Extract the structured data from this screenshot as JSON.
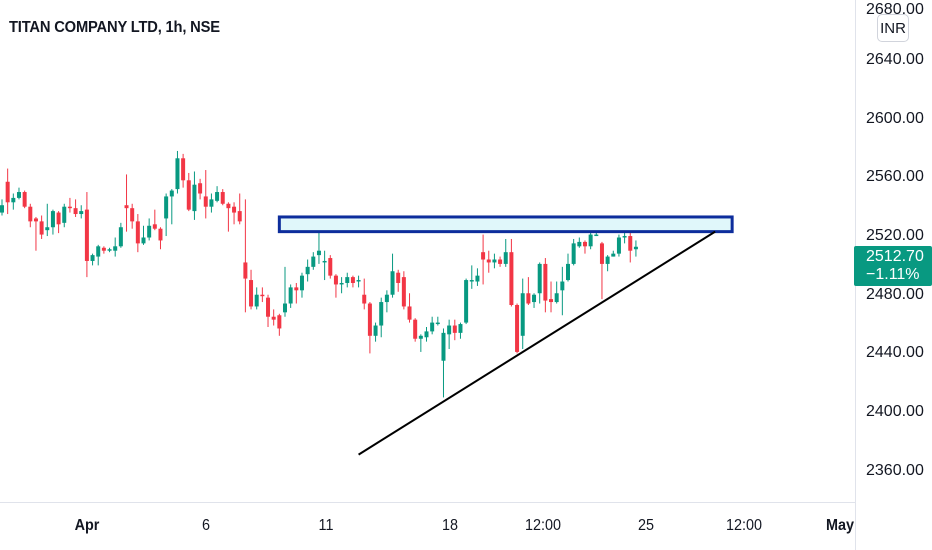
{
  "header": {
    "title": "TITAN COMPANY LTD, 1h, NSE",
    "currency": "INR"
  },
  "last_price": {
    "value": "2512.70",
    "change": "−1.11%",
    "color": "#089981"
  },
  "chart_data": {
    "type": "candlestick",
    "title": "TITAN COMPANY LTD, 1h, NSE",
    "ylim": [
      2340,
      2680
    ],
    "y_ticks": [
      "2360.00",
      "2400.00",
      "2440.00",
      "2480.00",
      "2520.00",
      "2560.00",
      "2600.00",
      "2640.00",
      "2680.00"
    ],
    "x_ticks": [
      {
        "label": "Apr",
        "bold": true
      },
      {
        "label": "6"
      },
      {
        "label": "11"
      },
      {
        "label": "18"
      },
      {
        "label": "12:00"
      },
      {
        "label": "25"
      },
      {
        "label": "12:00"
      },
      {
        "label": "May",
        "bold": true
      }
    ],
    "colors": {
      "up": "#089981",
      "down": "#f23645",
      "zone_fill": "#e0f7fa",
      "zone_border": "#0d2d9c",
      "trendline": "#000000"
    },
    "candles_ohlc": [
      [
        2536,
        2545,
        2534,
        2541
      ],
      [
        2557,
        2566,
        2535,
        2543
      ],
      [
        2543,
        2549,
        2538,
        2546
      ],
      [
        2546,
        2553,
        2545,
        2550
      ],
      [
        2550,
        2551,
        2539,
        2540
      ],
      [
        2540,
        2542,
        2526,
        2530
      ],
      [
        2532,
        2533,
        2510,
        2530
      ],
      [
        2530,
        2534,
        2518,
        2521
      ],
      [
        2524,
        2542,
        2520,
        2526
      ],
      [
        2526,
        2538,
        2521,
        2537
      ],
      [
        2536,
        2537,
        2522,
        2528
      ],
      [
        2529,
        2542,
        2526,
        2540
      ],
      [
        2540,
        2546,
        2536,
        2539
      ],
      [
        2539,
        2545,
        2533,
        2535
      ],
      [
        2535,
        2541,
        2532,
        2537
      ],
      [
        2538,
        2550,
        2492,
        2503
      ],
      [
        2503,
        2508,
        2500,
        2507
      ],
      [
        2506,
        2514,
        2500,
        2513
      ],
      [
        2512,
        2513,
        2508,
        2510
      ],
      [
        2510,
        2512,
        2509,
        2511
      ],
      [
        2510,
        2519,
        2506,
        2513
      ],
      [
        2513,
        2529,
        2512,
        2526
      ],
      [
        2541,
        2562,
        2523,
        2539
      ],
      [
        2539,
        2542,
        2525,
        2530
      ],
      [
        2530,
        2535,
        2509,
        2515
      ],
      [
        2515,
        2527,
        2514,
        2519
      ],
      [
        2519,
        2532,
        2517,
        2527
      ],
      [
        2528,
        2538,
        2524,
        2525
      ],
      [
        2525,
        2526,
        2511,
        2517
      ],
      [
        2532,
        2549,
        2520,
        2547
      ],
      [
        2547,
        2552,
        2528,
        2551
      ],
      [
        2552,
        2578,
        2549,
        2573
      ],
      [
        2573,
        2576,
        2553,
        2558
      ],
      [
        2558,
        2563,
        2537,
        2538
      ],
      [
        2537,
        2564,
        2531,
        2555
      ],
      [
        2556,
        2559,
        2545,
        2549
      ],
      [
        2547,
        2565,
        2532,
        2540
      ],
      [
        2540,
        2549,
        2536,
        2545
      ],
      [
        2544,
        2554,
        2543,
        2550
      ],
      [
        2550,
        2552,
        2541,
        2542
      ],
      [
        2542,
        2543,
        2523,
        2539
      ],
      [
        2540,
        2543,
        2528,
        2536
      ],
      [
        2537,
        2549,
        2528,
        2530
      ],
      [
        2502,
        2545,
        2468,
        2491
      ],
      [
        2490,
        2497,
        2470,
        2472
      ],
      [
        2472,
        2485,
        2470,
        2480
      ],
      [
        2480,
        2485,
        2475,
        2479
      ],
      [
        2478,
        2480,
        2458,
        2465
      ],
      [
        2465,
        2470,
        2459,
        2463
      ],
      [
        2466,
        2467,
        2452,
        2457
      ],
      [
        2468,
        2499,
        2465,
        2474
      ],
      [
        2474,
        2487,
        2471,
        2485
      ],
      [
        2485,
        2488,
        2474,
        2483
      ],
      [
        2483,
        2495,
        2478,
        2493
      ],
      [
        2494,
        2504,
        2489,
        2499
      ],
      [
        2499,
        2509,
        2497,
        2506
      ],
      [
        2507,
        2533,
        2501,
        2510
      ],
      [
        2502,
        2510,
        2490,
        2503
      ],
      [
        2505,
        2507,
        2491,
        2493
      ],
      [
        2493,
        2494,
        2478,
        2487
      ],
      [
        2487,
        2492,
        2481,
        2488
      ],
      [
        2488,
        2495,
        2485,
        2492
      ],
      [
        2492,
        2493,
        2485,
        2488
      ],
      [
        2489,
        2493,
        2485,
        2490
      ],
      [
        2480,
        2491,
        2470,
        2474
      ],
      [
        2474,
        2475,
        2440,
        2452
      ],
      [
        2452,
        2461,
        2448,
        2459
      ],
      [
        2459,
        2478,
        2451,
        2475
      ],
      [
        2475,
        2483,
        2468,
        2480
      ],
      [
        2480,
        2508,
        2478,
        2496
      ],
      [
        2495,
        2497,
        2482,
        2488
      ],
      [
        2492,
        2496,
        2470,
        2472
      ],
      [
        2472,
        2481,
        2461,
        2463
      ],
      [
        2463,
        2464,
        2448,
        2450
      ],
      [
        2450,
        2453,
        2441,
        2452
      ],
      [
        2451,
        2458,
        2448,
        2455
      ],
      [
        2455,
        2465,
        2453,
        2461
      ],
      [
        2460,
        2465,
        2459,
        2461
      ],
      [
        2435,
        2457,
        2410,
        2454
      ],
      [
        2453,
        2463,
        2443,
        2459
      ],
      [
        2459,
        2463,
        2449,
        2454
      ],
      [
        2454,
        2461,
        2450,
        2460
      ],
      [
        2461,
        2491,
        2460,
        2490
      ],
      [
        2489,
        2500,
        2484,
        2490
      ],
      [
        2489,
        2498,
        2486,
        2493
      ],
      [
        2509,
        2521,
        2487,
        2504
      ],
      [
        2504,
        2510,
        2495,
        2502
      ],
      [
        2502,
        2508,
        2498,
        2504
      ],
      [
        2504,
        2506,
        2499,
        2501
      ],
      [
        2501,
        2518,
        2499,
        2509
      ],
      [
        2509,
        2518,
        2472,
        2473
      ],
      [
        2473,
        2474,
        2440,
        2441
      ],
      [
        2452,
        2491,
        2443,
        2481
      ],
      [
        2481,
        2492,
        2473,
        2474
      ],
      [
        2475,
        2481,
        2471,
        2480
      ],
      [
        2481,
        2502,
        2474,
        2501
      ],
      [
        2501,
        2505,
        2468,
        2476
      ],
      [
        2477,
        2489,
        2468,
        2475
      ],
      [
        2475,
        2489,
        2474,
        2481
      ],
      [
        2483,
        2499,
        2466,
        2489
      ],
      [
        2490,
        2508,
        2489,
        2501
      ],
      [
        2501,
        2518,
        2500,
        2515
      ],
      [
        2513,
        2519,
        2512,
        2516
      ],
      [
        2516,
        2517,
        2508,
        2513
      ],
      [
        2513,
        2526,
        2511,
        2521
      ],
      [
        2520,
        2525,
        2520,
        2521
      ],
      [
        2515,
        2516,
        2477,
        2501
      ],
      [
        2501,
        2507,
        2496,
        2506
      ],
      [
        2506,
        2510,
        2506,
        2508
      ],
      [
        2508,
        2521,
        2506,
        2519
      ],
      [
        2519,
        2526,
        2515,
        2520
      ],
      [
        2520,
        2523,
        2502,
        2510
      ],
      [
        2511,
        2517,
        2506,
        2512.7
      ]
    ],
    "resistance_zone": {
      "from_candle": 49,
      "to_candle": 129,
      "top": 2533,
      "bottom": 2523
    },
    "trendline": {
      "start": {
        "candle": 63,
        "price": 2371
      },
      "end": {
        "candle": 126,
        "price": 2523
      }
    }
  }
}
